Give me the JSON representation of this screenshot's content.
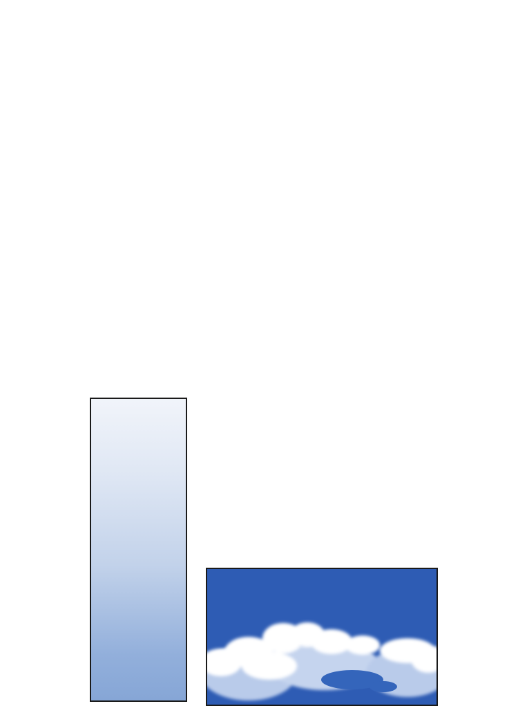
{
  "panels": [
    {
      "id": "gradient-sky-panel",
      "colors": {
        "top": "#f1f4fa",
        "bottom": "#86a6d6"
      }
    },
    {
      "id": "cloud-sky-panel",
      "colors": {
        "sky": "#2e5cb4",
        "cloud": "#ffffff",
        "cloud_shadow": "#b9cbea"
      }
    }
  ]
}
